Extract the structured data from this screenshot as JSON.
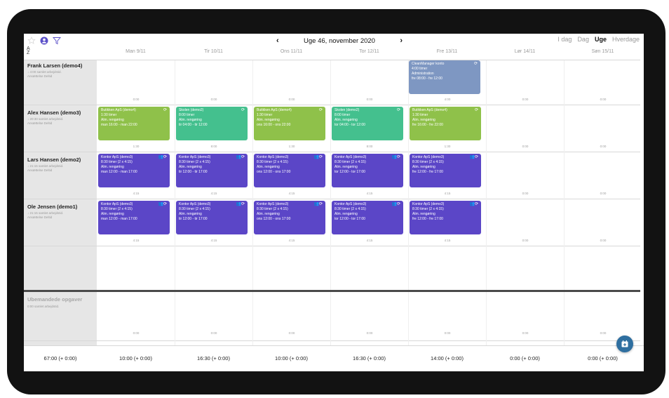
{
  "toolbar": {
    "week_label": "Uge 46, november 2020",
    "prev": "‹",
    "next": "›",
    "views": [
      "I dag",
      "Dag",
      "Uge",
      "Hverdage"
    ],
    "active_view": "Uge"
  },
  "days": [
    "Man 9/11",
    "Tir 10/11",
    "Ons 11/11",
    "Tor 12/11",
    "Fre 13/11",
    "Lør 14/11",
    "Søn 15/11"
  ],
  "employees": [
    {
      "name": "Frank Larsen  (demo4)",
      "sub1": "↓ 4:00 samlet arbejdstid.",
      "sub2": "Ansættelse Deltid",
      "totals": [
        "0:00",
        "0:00",
        "0:00",
        "0:00",
        "4:00",
        "0:00",
        "0:00"
      ]
    },
    {
      "name": "Alex Hansen  (demo3)",
      "sub1": "↓ 20:30 samlet arbejdstid.",
      "sub2": "Ansættelse Deltid",
      "totals": [
        "1:30",
        "8:00",
        "1:30",
        "8:00",
        "1:30",
        "0:00",
        "0:00"
      ]
    },
    {
      "name": "Lars Hansen  (demo2)",
      "sub1": "↓ 21:15 samlet arbejdstid.",
      "sub2": "Ansættelse Deltid",
      "totals": [
        "4:15",
        "4:15",
        "4:15",
        "4:15",
        "4:15",
        "0:00",
        "0:00"
      ]
    },
    {
      "name": "Ole Jensen  (demo1)",
      "sub1": "↓ 21:15 samlet arbejdstid.",
      "sub2": "Ansættelse Deltid",
      "totals": [
        "4:15",
        "4:15",
        "4:15",
        "4:15",
        "4:15",
        "0:00",
        "0:00"
      ]
    }
  ],
  "tasks": {
    "frank_fri": [
      "CleanManager konto",
      "4:00 timer",
      "Administration",
      "fre 08:00 - fre 12:00"
    ],
    "alex": [
      [
        "Butikken ApS (demo4)",
        "1:30 timer",
        "Alm. rengøring",
        "man 16:00 - man 22:00"
      ],
      [
        "Skolen (demo2)",
        "8:00 timer",
        "Alm. rengøring",
        "tir 04:00 - tir 12:00"
      ],
      [
        "Butikken ApS (demo4)",
        "1:30 timer",
        "Alm. rengøring",
        "ons 16:00 - ons 22:00"
      ],
      [
        "Skolen (demo2)",
        "8:00 timer",
        "Alm. rengøring",
        "tor 04:00 - tor 12:00"
      ],
      [
        "Butikken ApS (demo4)",
        "1:30 timer",
        "Alm. rengøring",
        "fre 16:00 - fre 22:00"
      ]
    ],
    "lars": [
      [
        "Kontor ApS (demo3)",
        "8:30 timer (2 x 4:15)",
        "Alm. rengøring",
        "man 12:00 - man 17:00"
      ],
      [
        "Kontor ApS (demo3)",
        "8:30 timer (2 x 4:15)",
        "Alm. rengøring",
        "tir 12:00 - tir 17:00"
      ],
      [
        "Kontor ApS (demo3)",
        "8:30 timer (2 x 4:15)",
        "Alm. rengøring",
        "ons 12:00 - ons 17:00"
      ],
      [
        "Kontor ApS (demo3)",
        "8:30 timer (2 x 4:15)",
        "Alm. rengøring",
        "tor 12:00 - tor 17:00"
      ],
      [
        "Kontor ApS (demo3)",
        "8:30 timer (2 x 4:15)",
        "Alm. rengøring",
        "fre 12:00 - fre 17:00"
      ]
    ],
    "ole": [
      [
        "Kontor ApS (demo3)",
        "8:30 timer (2 x 4:15)",
        "Alm. rengøring",
        "man 12:00 - man 17:00"
      ],
      [
        "Kontor ApS (demo3)",
        "8:30 timer (2 x 4:15)",
        "Alm. rengøring",
        "tir 12:00 - tir 17:00"
      ],
      [
        "Kontor ApS (demo3)",
        "8:30 timer (2 x 4:15)",
        "Alm. rengøring",
        "ons 12:00 - ons 17:00"
      ],
      [
        "Kontor ApS (demo3)",
        "8:30 timer (2 x 4:15)",
        "Alm. rengøring",
        "tor 12:00 - tor 17:00"
      ],
      [
        "Kontor ApS (demo3)",
        "8:30 timer (2 x 4:15)",
        "Alm. rengøring",
        "fre 12:00 - fre 17:00"
      ]
    ]
  },
  "unassigned": {
    "title": "Ubemandede opgaver",
    "sub": "0:00 samlet arbejdstid.",
    "totals": [
      "0:00",
      "0:00",
      "0:00",
      "0:00",
      "0:00",
      "0:00",
      "0:00"
    ]
  },
  "footer": [
    "67:00 (+ 0:00)",
    "10:00 (+ 0:00)",
    "16:30 (+ 0:00)",
    "10:00 (+ 0:00)",
    "16:30 (+ 0:00)",
    "14:00 (+ 0:00)",
    "0:00 (+ 0:00)",
    "0:00 (+ 0:00)"
  ],
  "icons": {
    "filter": "filter-icon",
    "user": "user-circle-icon",
    "star": "star-icon",
    "sort": "sort-az-icon",
    "repeat": "repeat-icon",
    "group": "group-icon",
    "calendar": "calendar-add-icon"
  },
  "colors": {
    "gray_task": "#7e97c2",
    "lime_task": "#8fc14a",
    "teal_task": "#44c08e",
    "purple_task": "#5b46c7",
    "fab": "#2f6fa0"
  }
}
